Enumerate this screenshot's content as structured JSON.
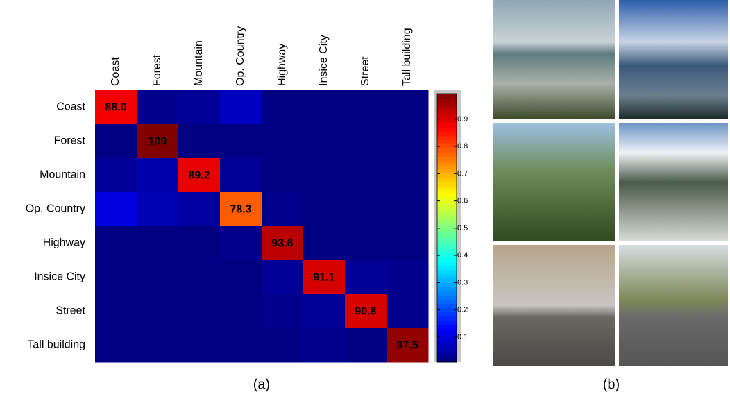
{
  "chart_data": {
    "type": "heatmap",
    "categories": [
      "Coast",
      "Forest",
      "Mountain",
      "Op. Country",
      "Highway",
      "Insice City",
      "Street",
      "Tall building"
    ],
    "values": [
      [
        0.88,
        0.02,
        0.03,
        0.07,
        0,
        0,
        0,
        0
      ],
      [
        0,
        1.0,
        0,
        0,
        0,
        0,
        0,
        0
      ],
      [
        0.03,
        0.05,
        0.892,
        0.03,
        0,
        0,
        0,
        0
      ],
      [
        0.1,
        0.06,
        0.04,
        0.783,
        0.02,
        0,
        0,
        0
      ],
      [
        0.01,
        0,
        0,
        0.02,
        0.936,
        0.01,
        0.01,
        0
      ],
      [
        0,
        0,
        0,
        0,
        0.03,
        0.911,
        0.03,
        0.02
      ],
      [
        0,
        0,
        0,
        0,
        0.02,
        0.03,
        0.908,
        0.02
      ],
      [
        0,
        0,
        0,
        0,
        0.01,
        0.02,
        0.01,
        0.975
      ]
    ],
    "value_labels": [
      [
        "88.0",
        null,
        null,
        null,
        null,
        null,
        null,
        null
      ],
      [
        null,
        "100",
        null,
        null,
        null,
        null,
        null,
        null
      ],
      [
        null,
        null,
        "89.2",
        null,
        null,
        null,
        null,
        null
      ],
      [
        null,
        null,
        null,
        "78.3",
        null,
        null,
        null,
        null
      ],
      [
        null,
        null,
        null,
        null,
        "93.6",
        null,
        null,
        null
      ],
      [
        null,
        null,
        null,
        null,
        null,
        "91.1",
        null,
        null
      ],
      [
        null,
        null,
        null,
        null,
        null,
        null,
        "90.8",
        null
      ],
      [
        null,
        null,
        null,
        null,
        null,
        null,
        null,
        "97.5"
      ]
    ],
    "colormap": "jet",
    "zlim": [
      0.008,
      0.994
    ],
    "zticks": [
      0.1,
      0.2,
      0.3,
      0.4,
      0.5,
      0.6,
      0.7,
      0.8,
      0.9
    ]
  },
  "panels": {
    "a": "(a)",
    "b": "(b)"
  }
}
